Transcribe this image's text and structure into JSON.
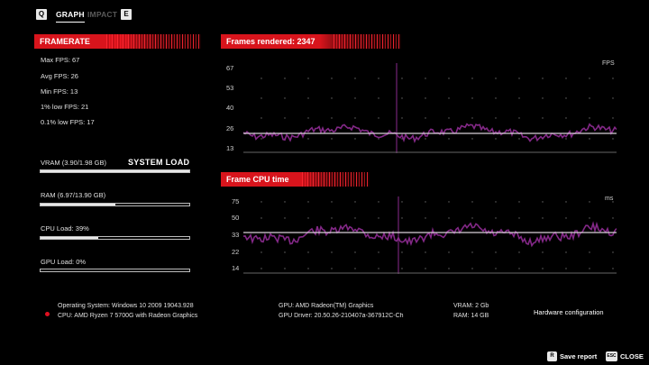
{
  "tabs": {
    "key_left": "Q",
    "graph": "GRAPH",
    "impact": "IMPACT",
    "key_right": "E"
  },
  "framerate": {
    "title": "FRAMERATE",
    "stats": [
      "Max FPS: 67",
      "Avg FPS: 26",
      "Min FPS: 13",
      "1% low FPS: 21",
      "0.1% low FPS: 17"
    ]
  },
  "system_load": {
    "title": "SYSTEM LOAD",
    "items": [
      {
        "label": "VRAM (3.90/1.98 GB)",
        "fraction": 1.0
      },
      {
        "label": "RAM (6.97/13.90 GB)",
        "fraction": 0.5
      },
      {
        "label": "CPU Load: 39%",
        "fraction": 0.39
      },
      {
        "label": "GPU Load: 0%",
        "fraction": 0.0
      }
    ]
  },
  "graph_fps": {
    "title": "Frames rendered: 2347",
    "unit": "FPS",
    "ticks": [
      "67",
      "53",
      "40",
      "26",
      "13"
    ],
    "reference_value": 26
  },
  "graph_cpu": {
    "title": "Frame CPU time",
    "unit": "ms",
    "ticks": [
      "75",
      "50",
      "33",
      "22",
      "14"
    ],
    "reference_value": 33
  },
  "hardware": {
    "os": "Operating System: Windows 10 2009 19043.928",
    "cpu": "CPU: AMD Ryzen 7 5700G with Radeon Graphics",
    "gpu": "GPU: AMD Radeon(TM) Graphics",
    "gpu_driver": "GPU Driver: 20.50.26-210407a-367912C-Ch",
    "vram": "VRAM: 2 Gb",
    "ram": "RAM: 14 GB",
    "config_label": "Hardware configuration"
  },
  "footer": {
    "save_key": "R",
    "save_label": "Save report",
    "close_key": "ESC",
    "close_label": "CLOSE"
  },
  "colors": {
    "accent_red": "#d8141c",
    "graph_purple": "#8a2a8e",
    "reference_line": "#d8d0d8"
  }
}
